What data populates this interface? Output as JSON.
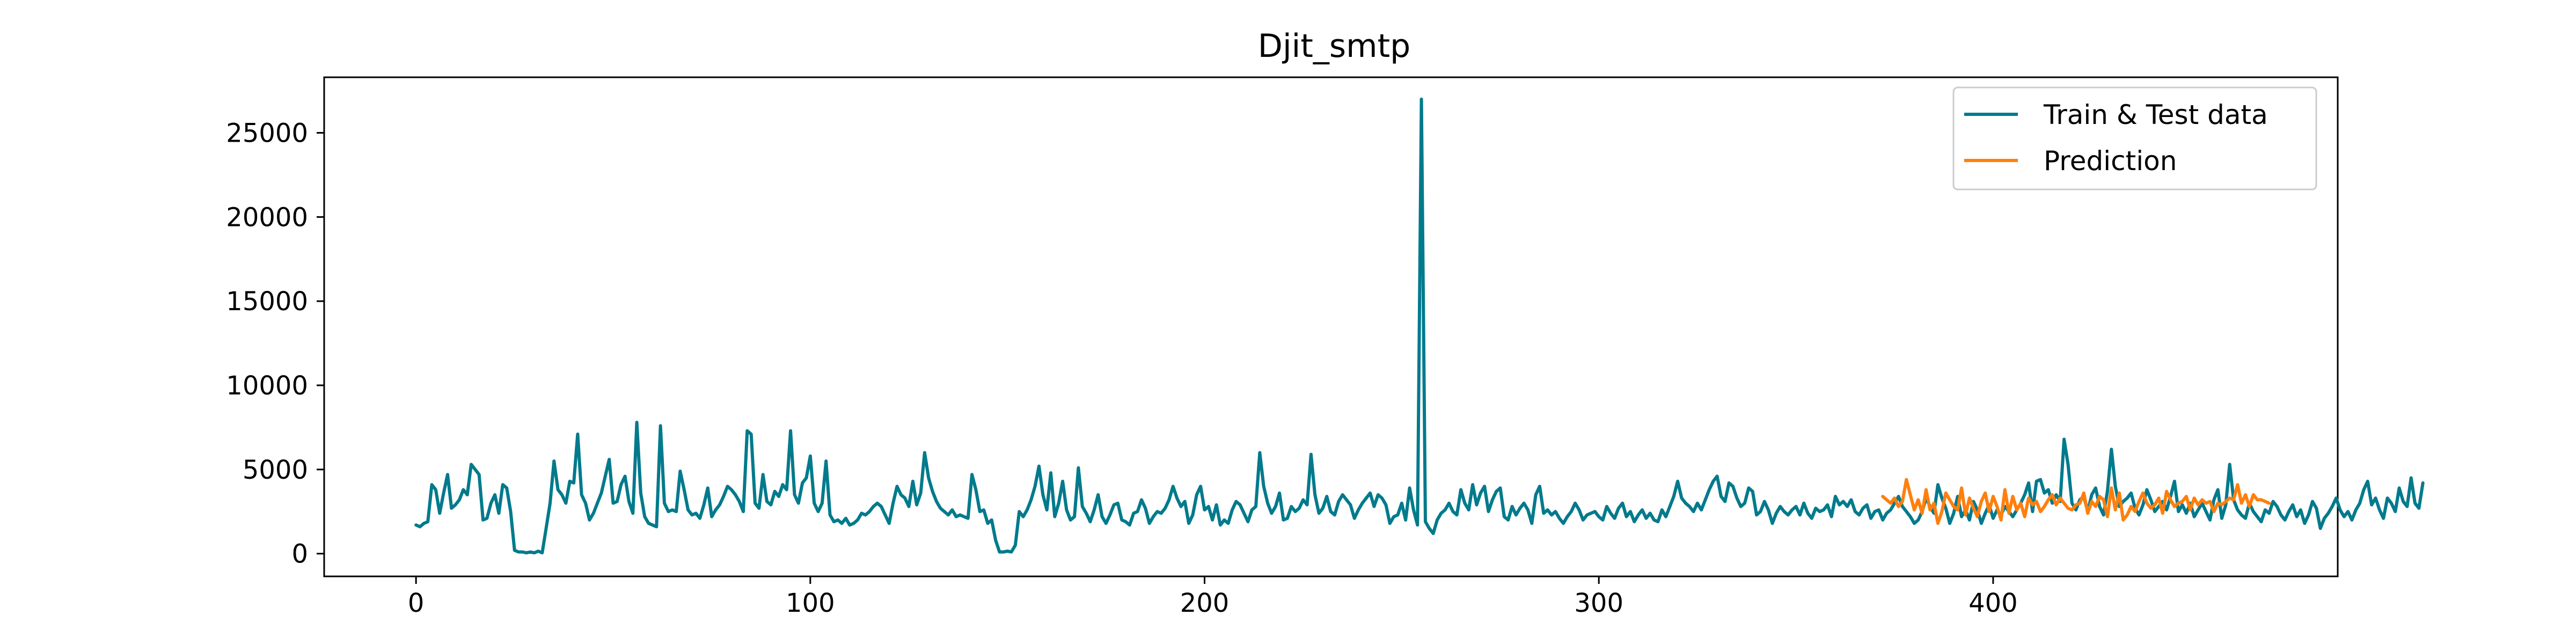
{
  "chart_data": {
    "type": "line",
    "title": "Djit_smtp",
    "xlabel": "",
    "ylabel": "",
    "xlim": [
      -23.3,
      487.4
    ],
    "ylim": [
      -1350,
      28300
    ],
    "x_ticks": [
      0,
      100,
      200,
      300,
      400
    ],
    "y_ticks": [
      0,
      5000,
      10000,
      15000,
      20000,
      25000
    ],
    "grid": false,
    "legend_placement": "top-right",
    "series": [
      {
        "name": "Train & Test data",
        "color": "#007a8c",
        "x_start": 0,
        "values": [
          1700,
          1600,
          1800,
          1900,
          4100,
          3800,
          2400,
          3600,
          4700,
          2700,
          2900,
          3200,
          3800,
          3500,
          5300,
          5000,
          4700,
          2000,
          2100,
          3000,
          3500,
          2400,
          4100,
          3900,
          2500,
          200,
          100,
          100,
          50,
          100,
          50,
          150,
          50,
          1500,
          3000,
          5500,
          3800,
          3500,
          3000,
          4300,
          4200,
          7100,
          3500,
          3000,
          2000,
          2400,
          3000,
          3600,
          4600,
          5600,
          3000,
          3100,
          4100,
          4600,
          3100,
          2400,
          7800,
          3600,
          2200,
          1800,
          1700,
          1600,
          7600,
          3000,
          2500,
          2600,
          2500,
          4900,
          3800,
          2600,
          2300,
          2400,
          2100,
          2900,
          3900,
          2200,
          2600,
          2900,
          3400,
          4000,
          3800,
          3500,
          3100,
          2500,
          7300,
          7100,
          3000,
          2700,
          4700,
          3100,
          2900,
          3700,
          3400,
          4100,
          3800,
          7300,
          3500,
          3000,
          4200,
          4500,
          5800,
          3000,
          2500,
          3000,
          5500,
          2300,
          1900,
          2000,
          1800,
          2100,
          1700,
          1800,
          2000,
          2400,
          2300,
          2500,
          2800,
          3000,
          2800,
          2300,
          1800,
          3000,
          4000,
          3500,
          3300,
          2800,
          4300,
          2900,
          3600,
          6000,
          4500,
          3700,
          3100,
          2700,
          2500,
          2300,
          2600,
          2200,
          2300,
          2200,
          2100,
          4700,
          3800,
          2500,
          2600,
          1800,
          2000,
          800,
          100,
          100,
          150,
          100,
          500,
          2500,
          2200,
          2600,
          3200,
          4000,
          5200,
          3500,
          2600,
          4800,
          2200,
          3000,
          4300,
          2600,
          2000,
          2200,
          5100,
          2800,
          2400,
          1900,
          2600,
          3500,
          2200,
          1800,
          2300,
          2900,
          3000,
          2000,
          1900,
          1700,
          2400,
          2500,
          3200,
          2700,
          1800,
          2200,
          2500,
          2400,
          2700,
          3200,
          4000,
          3300,
          2800,
          3100,
          1800,
          2300,
          3500,
          4000,
          2600,
          2800,
          2000,
          2900,
          1700,
          2000,
          1800,
          2600,
          3100,
          2900,
          2400,
          1900,
          2600,
          2800,
          6000,
          4000,
          3000,
          2400,
          2800,
          3600,
          2000,
          2100,
          2800,
          2500,
          2700,
          3200,
          2900,
          5900,
          3500,
          2400,
          2700,
          3400,
          2500,
          2300,
          3100,
          3500,
          3200,
          2900,
          2100,
          2600,
          3000,
          3300,
          3600,
          2800,
          3500,
          3300,
          2900,
          1800,
          2200,
          2300,
          3000,
          2000,
          3900,
          2600,
          1700,
          27000,
          1900,
          1500,
          1200,
          2000,
          2400,
          2600,
          3000,
          2500,
          2300,
          3800,
          3000,
          2600,
          4100,
          2900,
          3600,
          4000,
          2500,
          3200,
          3700,
          3900,
          2200,
          2000,
          2800,
          2300,
          2700,
          3000,
          2600,
          1800,
          3500,
          4000,
          2400,
          2600,
          2300,
          2500,
          2100,
          1800,
          2200,
          2500,
          3000,
          2600,
          2000,
          2300,
          2400,
          2500,
          2200,
          2000,
          2800,
          2400,
          2100,
          2700,
          3000,
          2200,
          2500,
          1900,
          2300,
          2600,
          2100,
          2400,
          2000,
          1900,
          2600,
          2200,
          2800,
          3400,
          4300,
          3300,
          3000,
          2800,
          2500,
          3000,
          2600,
          3200,
          3800,
          4300,
          4600,
          3400,
          3100,
          4200,
          4000,
          3300,
          2800,
          3000,
          3900,
          3700,
          2300,
          2500,
          3100,
          2600,
          1800,
          2400,
          2800,
          2500,
          2300,
          2600,
          2800,
          2300,
          3000,
          2400,
          2100,
          2700,
          2500,
          2600,
          2900,
          2200,
          3400,
          2900,
          3100,
          2800,
          3200,
          2500,
          2300,
          2700,
          2900,
          2100,
          2500,
          2600,
          2000,
          2400,
          2600,
          3000,
          3400,
          2800,
          2500,
          2200,
          1800,
          2000,
          2500,
          3300,
          2800,
          2400,
          4100,
          3300,
          2700,
          1800,
          2400,
          3400,
          2200,
          2600,
          2000,
          3100,
          2600,
          1800,
          2400,
          2900,
          2100,
          2600,
          2300,
          2800,
          2500,
          2200,
          2600,
          3000,
          3500,
          4200,
          2500,
          4300,
          4400,
          3600,
          3800,
          3000,
          3500,
          3100,
          6800,
          5300,
          3000,
          2600,
          3200,
          3400,
          2500,
          3500,
          3900,
          2800,
          2300,
          3700,
          6200,
          4000,
          2800,
          3100,
          3300,
          3600,
          2700,
          2300,
          2900,
          3800,
          3200,
          2500,
          2800,
          3100,
          2600,
          3400,
          4300,
          2500,
          2900,
          2400,
          3000,
          2200,
          2600,
          3000,
          2500,
          2000,
          3200,
          3800,
          2100,
          2900,
          5300,
          3200,
          2600,
          2300,
          2100,
          3000,
          2500,
          2200,
          1900,
          2600,
          2400,
          3100,
          2800,
          2300,
          2000,
          2500,
          2900,
          2200,
          2600,
          1800,
          2300,
          3100,
          2700,
          1500,
          2100,
          2400,
          2800,
          3300,
          2600,
          2200,
          2500,
          2000,
          2600,
          3000,
          3800,
          4300,
          2900,
          3300,
          2600,
          2100,
          3300,
          3000,
          2500,
          3900,
          3100,
          2800,
          4500,
          3000,
          2700,
          4200
        ]
      },
      {
        "name": "Prediction",
        "color": "#ff7f0e",
        "x_start": 372,
        "values": [
          3400,
          3200,
          3000,
          3300,
          2800,
          3100,
          4400,
          3500,
          2600,
          3200,
          2400,
          3800,
          2600,
          3000,
          1800,
          2500,
          3600,
          3200,
          2800,
          2600,
          3900,
          2300,
          3300,
          2700,
          2200,
          3100,
          3600,
          2500,
          3400,
          2800,
          2000,
          3800,
          2400,
          3400,
          2600,
          3000,
          2200,
          3300,
          2900,
          3100,
          2500,
          2800,
          3200,
          3500,
          2900,
          3300,
          3000,
          2700,
          2600,
          2900,
          3000,
          3600,
          2400,
          3100,
          2800,
          3400,
          3200,
          2200,
          3900,
          2600,
          3600,
          2000,
          2300,
          2800,
          2500,
          3100,
          3600,
          3000,
          2700,
          2900,
          3300,
          2400,
          3700,
          3200,
          2800,
          3000,
          3100,
          3400,
          2600,
          3300,
          2900,
          3200,
          3000,
          3100,
          2500,
          3000,
          2900,
          3100,
          3300,
          3200,
          4100,
          3000,
          3500,
          2800,
          3500,
          3200,
          3200,
          3100,
          3000
        ]
      }
    ]
  }
}
